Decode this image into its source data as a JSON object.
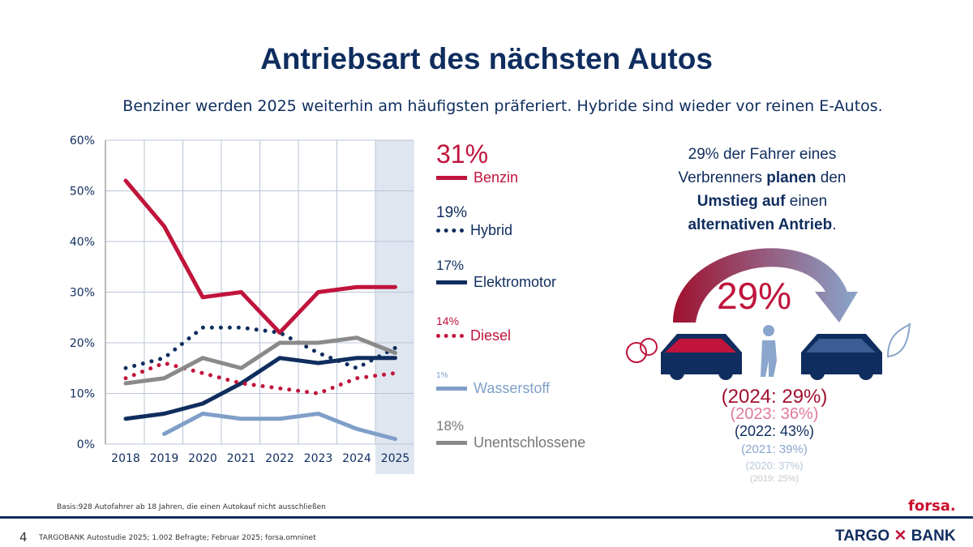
{
  "title": "Antriebsart des nächsten Autos",
  "subtitle": "Benziner werden 2025 weiterhin am häufigsten präferiert. Hybride sind wieder vor reinen E-Autos.",
  "chart_data": {
    "type": "line",
    "categories": [
      "2018",
      "2019",
      "2020",
      "2021",
      "2022",
      "2023",
      "2024",
      "2025"
    ],
    "ylim": [
      0,
      60
    ],
    "yticks": [
      "0%",
      "10%",
      "20%",
      "30%",
      "40%",
      "50%",
      "60%"
    ],
    "grid": true,
    "highlight_category": "2025",
    "series": [
      {
        "name": "Benzin",
        "label": "31%",
        "color": "#c0143c",
        "style": "solid",
        "values": [
          52,
          43,
          29,
          30,
          22,
          30,
          31,
          31
        ]
      },
      {
        "name": "Hybrid",
        "label": "19%",
        "color": "#0f2d5e",
        "style": "dotted",
        "values": [
          15,
          17,
          23,
          23,
          22,
          18,
          15,
          19
        ]
      },
      {
        "name": "Elektromotor",
        "label": "17%",
        "color": "#0f2d5e",
        "style": "solid",
        "values": [
          5,
          6,
          8,
          12,
          17,
          16,
          17,
          17
        ]
      },
      {
        "name": "Diesel",
        "label": "14%",
        "color": "#c0143c",
        "style": "dotted",
        "values": [
          13,
          16,
          14,
          12,
          11,
          10,
          13,
          14
        ]
      },
      {
        "name": "Wasserstoff",
        "label": "1%",
        "color": "#7f9fc8",
        "style": "solid",
        "values": [
          null,
          2,
          6,
          5,
          5,
          6,
          3,
          1
        ]
      },
      {
        "name": "Unentschlossene",
        "label": "18%",
        "color": "#8a8a8a",
        "style": "solid",
        "values": [
          12,
          13,
          17,
          15,
          20,
          20,
          21,
          18
        ]
      }
    ]
  },
  "side": {
    "line1": "29% der Fahrer eines",
    "line2a": "Verbrenners ",
    "line2b": "planen",
    "line2c": " den",
    "line3a": "Umstieg auf",
    "line3b": " einen",
    "line4a": "alternativen Antrieb",
    "line4b": ".",
    "big": "29%",
    "history": [
      "(2024: 29%)",
      "(2023: 36%)",
      "(2022: 43%)",
      "(2021: 39%)",
      "(2020: 37%)",
      "(2019: 25%)"
    ]
  },
  "footer": {
    "basis": "Basis:928 Autofahrer ab 18 Jahren, die einen Autokauf nicht ausschließen",
    "page": "4",
    "source": "TARGOBANK Autostudie 2025; 1.002 Befragte; Februar 2025; forsa.omninet",
    "forsa": "forsa.",
    "targo": "TARGO",
    "bank": "BANK"
  }
}
